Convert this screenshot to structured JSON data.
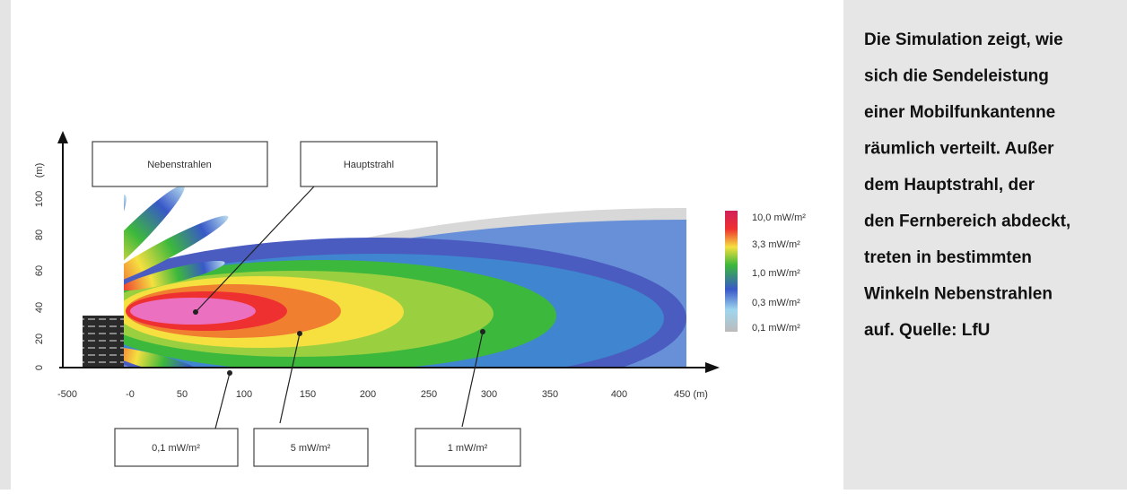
{
  "figure": {
    "y_axis_label": "(m)",
    "y_ticks": [
      "0",
      "20",
      "40",
      "60",
      "80",
      "100"
    ],
    "x_ticks": [
      "-500",
      "-0",
      "50",
      "100",
      "150",
      "200",
      "250",
      "300",
      "350",
      "400",
      "450 (m)"
    ],
    "callouts": [
      "Nebenstrahlen",
      "Hauptstrahl",
      "0,1 mW/m²",
      "5 mW/m²",
      "1 mW/m²"
    ],
    "legend": [
      "10,0 mW/m²",
      "3,3 mW/m²",
      "1,0 mW/m²",
      "0,3 mW/m²",
      "0,1 mW/m²"
    ]
  },
  "caption": {
    "lines": [
      "Die Simulation zeigt, wie",
      "sich die Sendeleistung",
      "einer Mobilfunkantenne",
      "räumlich verteilt. Außer",
      "dem Hauptstrahl, der",
      "den Fernbereich abdeckt,",
      "treten in bestimmten",
      "Winkeln Nebenstrahlen",
      "auf. Quelle: LfU"
    ]
  }
}
